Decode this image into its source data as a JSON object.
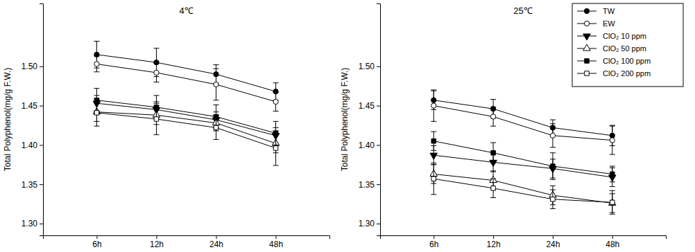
{
  "chart_data": [
    {
      "type": "line",
      "title": "4℃",
      "y_label": "Total Polyphenol(mg/g F.W.)",
      "categories": [
        "6h",
        "12h",
        "24h",
        "48h"
      ],
      "ylim": [
        1.285,
        1.58
      ],
      "yticks": [
        {
          "value": 1.3,
          "label": "1.30"
        },
        1.35,
        {
          "value": 1.4,
          "label": "1.40"
        },
        1.45,
        {
          "value": 1.5,
          "label": "1.50"
        }
      ],
      "series": [
        {
          "color": "#000000",
          "marker": "circle",
          "values": [
            1.515,
            1.505,
            1.49,
            1.468
          ],
          "errors": [
            0.017,
            0.018,
            0.012,
            0.011
          ]
        },
        {
          "color": "#000000",
          "marker": "circle-open",
          "values": [
            1.503,
            1.492,
            1.477,
            1.455
          ],
          "errors": [
            0.01,
            0.012,
            0.02,
            0.012
          ]
        },
        {
          "color": "#000000",
          "marker": "triangle-down",
          "values": [
            1.453,
            1.445,
            1.432,
            1.412
          ],
          "errors": [
            0.01,
            0.01,
            0.01,
            0.01
          ]
        },
        {
          "color": "#000000",
          "marker": "triangle-up-open",
          "values": [
            1.442,
            1.438,
            1.428,
            1.402
          ],
          "errors": [
            0.012,
            0.012,
            0.01,
            0.012
          ]
        },
        {
          "color": "#000000",
          "marker": "square",
          "values": [
            1.457,
            1.448,
            1.436,
            1.415
          ],
          "errors": [
            0.015,
            0.015,
            0.015,
            0.015
          ]
        },
        {
          "color": "#000000",
          "marker": "square-open",
          "values": [
            1.441,
            1.433,
            1.422,
            1.396
          ],
          "errors": [
            0.017,
            0.02,
            0.015,
            0.022
          ]
        }
      ]
    },
    {
      "type": "line",
      "title": "25℃",
      "y_label": "Total Polyphenol(mg/g F.W.)",
      "categories": [
        "6h",
        "12h",
        "24h",
        "48h"
      ],
      "ylim": [
        1.285,
        1.58
      ],
      "yticks": [
        {
          "value": 1.3,
          "label": "1.30"
        },
        1.35,
        {
          "value": 1.4,
          "label": "1.40"
        },
        1.45,
        {
          "value": 1.5,
          "label": "1.50"
        }
      ],
      "legend": "upper right",
      "series": [
        {
          "name": "TW",
          "color": "#000000",
          "marker": "circle",
          "values": [
            1.457,
            1.446,
            1.422,
            1.412
          ],
          "errors": [
            0.012,
            0.012,
            0.01,
            0.013
          ]
        },
        {
          "name": "EW",
          "color": "#000000",
          "marker": "circle-open",
          "values": [
            1.45,
            1.436,
            1.412,
            1.406
          ],
          "errors": [
            0.02,
            0.012,
            0.015,
            0.018
          ]
        },
        {
          "name": "ClO₂ 10 ppm",
          "color": "#000000",
          "marker": "triangle-down",
          "values": [
            1.387,
            1.378,
            1.37,
            1.359
          ],
          "errors": [
            0.012,
            0.012,
            0.012,
            0.012
          ]
        },
        {
          "name": "ClO₂ 50 ppm",
          "color": "#000000",
          "marker": "triangle-up-open",
          "values": [
            1.363,
            1.355,
            1.336,
            1.326
          ],
          "errors": [
            0.012,
            0.012,
            0.012,
            0.012
          ]
        },
        {
          "name": "ClO₂ 100 ppm",
          "color": "#000000",
          "marker": "square",
          "values": [
            1.405,
            1.39,
            1.373,
            1.363
          ],
          "errors": [
            0.012,
            0.013,
            0.017,
            0.01
          ]
        },
        {
          "name": "ClO₂ 200 ppm",
          "color": "#000000",
          "marker": "square-open",
          "values": [
            1.357,
            1.345,
            1.331,
            1.327
          ],
          "errors": [
            0.02,
            0.012,
            0.012,
            0.015
          ]
        }
      ]
    }
  ]
}
